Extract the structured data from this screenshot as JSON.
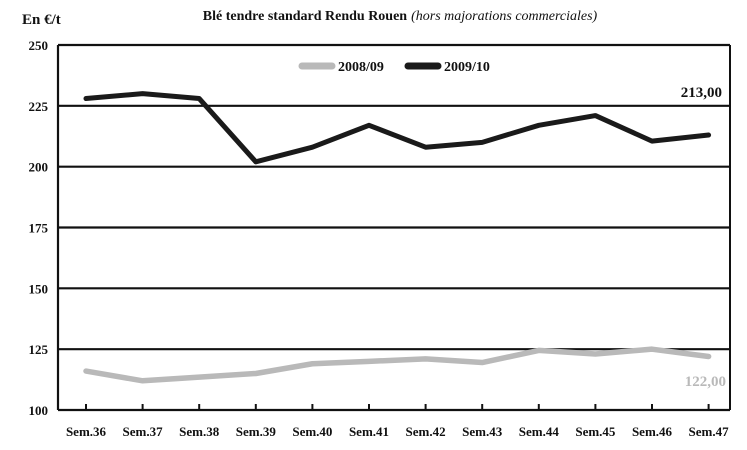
{
  "chart_data": {
    "type": "line",
    "title": "Blé tendre standard Rendu Rouen",
    "subtitle": "(hors majorations commerciales)",
    "ylabel": "En €/t",
    "xlabel": "",
    "ylim": [
      100,
      250
    ],
    "yticks": [
      100,
      125,
      150,
      175,
      200,
      225,
      250
    ],
    "grid": true,
    "legend_position": "top-center",
    "categories": [
      "Sem.36",
      "Sem.37",
      "Sem.38",
      "Sem.39",
      "Sem.40",
      "Sem.41",
      "Sem.42",
      "Sem.43",
      "Sem.44",
      "Sem.45",
      "Sem.46",
      "Sem.47"
    ],
    "series": [
      {
        "name": "2008/09",
        "color": "#b9b9b9",
        "values": [
          116,
          112,
          113.5,
          115,
          119,
          120,
          121,
          119.5,
          124.5,
          123,
          125,
          122
        ],
        "end_label": "122,00"
      },
      {
        "name": "2009/10",
        "color": "#1a1a1a",
        "values": [
          228,
          230,
          228,
          202,
          208,
          217,
          208,
          210,
          217,
          221,
          210.5,
          213
        ],
        "end_label": "213,00"
      }
    ]
  }
}
